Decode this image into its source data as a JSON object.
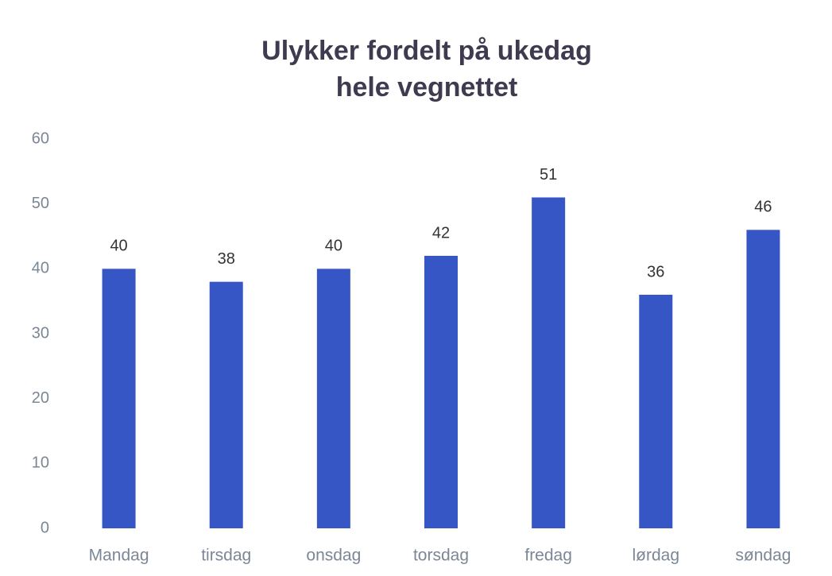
{
  "chart_data": {
    "type": "bar",
    "title": [
      "Ulykker fordelt på ukedag",
      "hele vegnettet"
    ],
    "categories": [
      "Mandag",
      "tirsdag",
      "onsdag",
      "torsdag",
      "fredag",
      "lørdag",
      "søndag"
    ],
    "values": [
      40,
      38,
      40,
      42,
      51,
      36,
      46
    ],
    "color": "#3656c6",
    "ylim": [
      0,
      60
    ],
    "yticks": [
      0,
      10,
      20,
      30,
      40,
      50,
      60
    ],
    "grid": false
  }
}
